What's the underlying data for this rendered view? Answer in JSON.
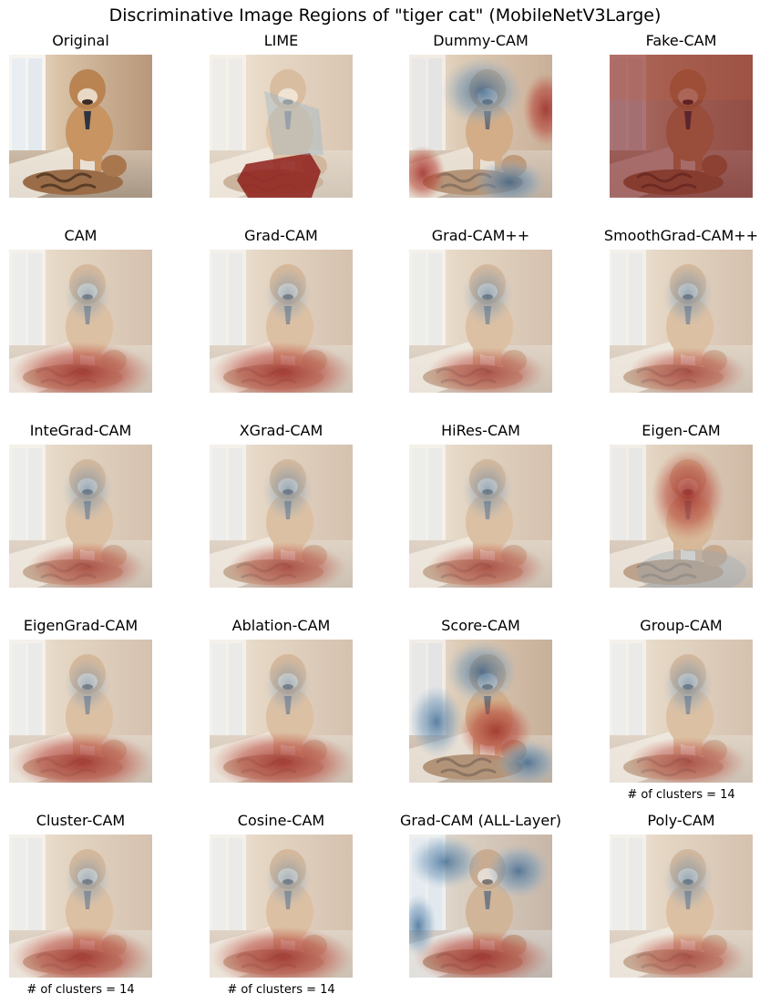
{
  "figure": {
    "title": "Discriminative Image Regions of \"tiger cat\" (MobileNetV3Large)"
  },
  "panels": [
    {
      "title": "Original",
      "overlay": "none",
      "caption": ""
    },
    {
      "title": "LIME",
      "overlay": "lime",
      "caption": ""
    },
    {
      "title": "Dummy-CAM",
      "overlay": "dummy",
      "caption": ""
    },
    {
      "title": "Fake-CAM",
      "overlay": "fake",
      "caption": ""
    },
    {
      "title": "CAM",
      "overlay": "cat",
      "caption": ""
    },
    {
      "title": "Grad-CAM",
      "overlay": "cat",
      "caption": ""
    },
    {
      "title": "Grad-CAM++",
      "overlay": "catlight",
      "caption": ""
    },
    {
      "title": "SmoothGrad-CAM++",
      "overlay": "catlight",
      "caption": ""
    },
    {
      "title": "InteGrad-CAM",
      "overlay": "catlight",
      "caption": ""
    },
    {
      "title": "XGrad-CAM",
      "overlay": "catlight",
      "caption": ""
    },
    {
      "title": "HiRes-CAM",
      "overlay": "catlight",
      "caption": ""
    },
    {
      "title": "Eigen-CAM",
      "overlay": "eigen",
      "caption": ""
    },
    {
      "title": "EigenGrad-CAM",
      "overlay": "cat",
      "caption": ""
    },
    {
      "title": "Ablation-CAM",
      "overlay": "cat",
      "caption": ""
    },
    {
      "title": "Score-CAM",
      "overlay": "score",
      "caption": ""
    },
    {
      "title": "Group-CAM",
      "overlay": "catlight",
      "caption": "# of clusters = 14"
    },
    {
      "title": "Cluster-CAM",
      "overlay": "cat",
      "caption": "# of clusters = 14"
    },
    {
      "title": "Cosine-CAM",
      "overlay": "cat",
      "caption": "# of clusters = 14"
    },
    {
      "title": "Grad-CAM (ALL-Layer)",
      "overlay": "all",
      "caption": ""
    },
    {
      "title": "Poly-CAM",
      "overlay": "catlight",
      "caption": ""
    }
  ],
  "colors": {
    "heat_hot": "#a8322c",
    "heat_cold": "#3a6e9a",
    "heat_neutral": "#f0e6da"
  }
}
